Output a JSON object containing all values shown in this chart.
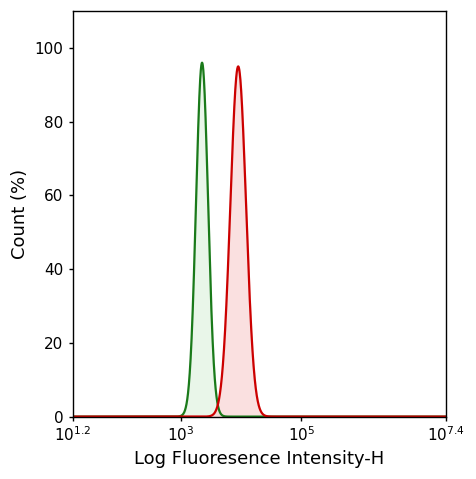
{
  "title": "",
  "xlabel": "Log Fluoresence Intensity-H",
  "ylabel": "Count (%)",
  "xlim_log": [
    1.2,
    7.4
  ],
  "ylim": [
    0,
    110
  ],
  "yticks": [
    0,
    20,
    40,
    60,
    80,
    100
  ],
  "green_peak_log": 3.35,
  "green_sigma_log": 0.1,
  "green_amplitude": 96,
  "red_peak_log": 3.95,
  "red_sigma_log": 0.13,
  "red_amplitude": 95,
  "green_color": "#1a7a1a",
  "green_fill": "#d8f0d8",
  "green_fill_alpha": 0.55,
  "red_color": "#cc0000",
  "red_fill": "#f8d0d0",
  "red_fill_alpha": 0.65,
  "background_color": "#ffffff",
  "figsize": [
    4.76,
    4.79
  ],
  "dpi": 100,
  "xlabel_fontsize": 13,
  "ylabel_fontsize": 13,
  "tick_fontsize": 11
}
